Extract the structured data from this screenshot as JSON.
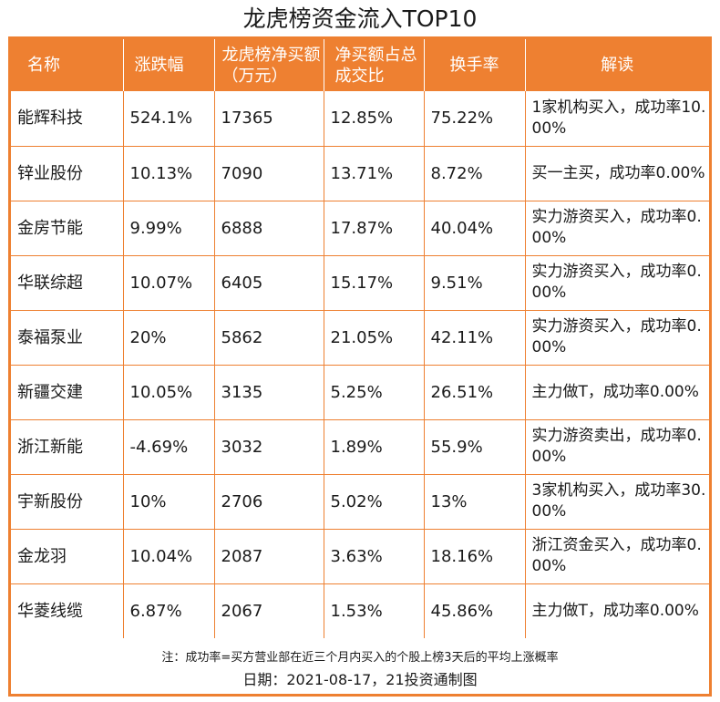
{
  "title": "龙虎榜资金流入TOP10",
  "colors": {
    "accent": "#ee8031",
    "header_text": "#ffffff"
  },
  "headers": [
    "名称",
    "涨跌幅",
    "龙虎榜净买额（万元）",
    "净买额占总成交比",
    "换手率",
    "解读"
  ],
  "rows": [
    {
      "name": "能辉科技",
      "change": "524.1%",
      "net_buy": "17365",
      "ratio": "12.85%",
      "turnover": "75.22%",
      "comment": "1家机构买入，成功率10.00%"
    },
    {
      "name": "锌业股份",
      "change": "10.13%",
      "net_buy": "7090",
      "ratio": "13.71%",
      "turnover": "8.72%",
      "comment": "买一主买，成功率0.00%"
    },
    {
      "name": "金房节能",
      "change": "9.99%",
      "net_buy": "6888",
      "ratio": "17.87%",
      "turnover": "40.04%",
      "comment": "实力游资买入，成功率0.00%"
    },
    {
      "name": "华联综超",
      "change": "10.07%",
      "net_buy": "6405",
      "ratio": "15.17%",
      "turnover": "9.51%",
      "comment": "实力游资买入，成功率0.00%"
    },
    {
      "name": "泰福泵业",
      "change": "20%",
      "net_buy": "5862",
      "ratio": "21.05%",
      "turnover": "42.11%",
      "comment": "实力游资买入，成功率0.00%"
    },
    {
      "name": "新疆交建",
      "change": "10.05%",
      "net_buy": "3135",
      "ratio": "5.25%",
      "turnover": "26.51%",
      "comment": "主力做T，成功率0.00%"
    },
    {
      "name": "浙江新能",
      "change": "-4.69%",
      "net_buy": "3032",
      "ratio": "1.89%",
      "turnover": "55.9%",
      "comment": "实力游资卖出，成功率0.00%"
    },
    {
      "name": "宇新股份",
      "change": "10%",
      "net_buy": "2706",
      "ratio": "5.02%",
      "turnover": "13%",
      "comment": "3家机构买入，成功率30.00%"
    },
    {
      "name": "金龙羽",
      "change": "10.04%",
      "net_buy": "2087",
      "ratio": "3.63%",
      "turnover": "18.16%",
      "comment": "浙江资金买入，成功率0.00%"
    },
    {
      "name": "华菱线缆",
      "change": "6.87%",
      "net_buy": "2067",
      "ratio": "1.53%",
      "turnover": "45.86%",
      "comment": "主力做T，成功率0.00%"
    }
  ],
  "footnote": "注：成功率=买方营业部在近三个月内买入的个股上榜3天后的平均上涨概率",
  "date_line": "日期：2021-08-17，21投资通制图"
}
